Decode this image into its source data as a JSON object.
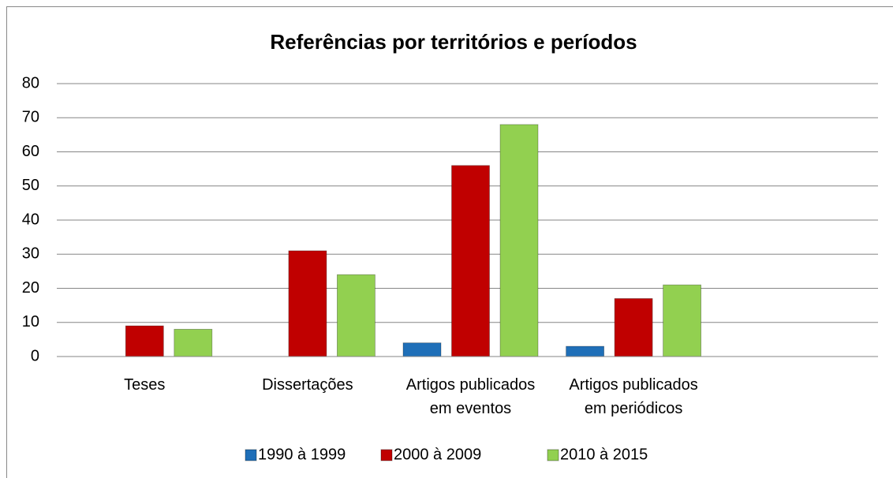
{
  "chart_data": {
    "type": "bar",
    "title": "Referências por territórios e períodos",
    "categories": [
      "Teses",
      "Dissertações",
      "Artigos publicados\nem eventos",
      "Artigos publicados\nem periódicos",
      null
    ],
    "series": [
      {
        "name": "1990 à 1999",
        "color": "#1f6fb8",
        "values": [
          0,
          0,
          4,
          3,
          null
        ]
      },
      {
        "name": "2000 à 2009",
        "color": "#c00000",
        "values": [
          9,
          31,
          56,
          17,
          null
        ]
      },
      {
        "name": "2010 à 2015",
        "color": "#92d050",
        "values": [
          8,
          24,
          68,
          21,
          null
        ]
      }
    ],
    "ylim": [
      0,
      80
    ],
    "yticks": [
      0,
      10,
      20,
      30,
      40,
      50,
      60,
      70,
      80
    ],
    "grid": true,
    "legend": "bottom"
  }
}
